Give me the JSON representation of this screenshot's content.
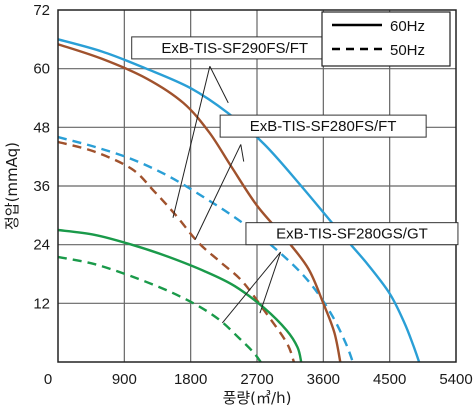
{
  "chart_data": {
    "type": "line",
    "xlabel": "풍량(㎥/h)",
    "ylabel": "정압(mmAq)",
    "xlim": [
      0,
      5400
    ],
    "ylim": [
      0,
      72
    ],
    "x_ticks": [
      900,
      1800,
      2700,
      3600,
      4500,
      5400
    ],
    "y_ticks": [
      0,
      12,
      24,
      36,
      48,
      60,
      72
    ],
    "grid": true,
    "legend": {
      "placement": "top-right",
      "entries": [
        {
          "label": "60Hz",
          "style": "solid"
        },
        {
          "label": "50Hz",
          "style": "dashed"
        }
      ]
    },
    "annotations": [
      {
        "text": "ExB-TIS-SF290FS/FT",
        "color": "#2a9fd6"
      },
      {
        "text": "ExB-TIS-SF280FS/FT",
        "color": "#a0522d"
      },
      {
        "text": "ExB-TIS-SF280GS/GT",
        "color": "#1a9a4a"
      }
    ],
    "series": [
      {
        "model": "ExB-TIS-SF290FS/FT",
        "freq": "60Hz",
        "style": "solid",
        "color": "#2a9fd6",
        "points": [
          [
            0,
            66
          ],
          [
            600,
            63.5
          ],
          [
            1200,
            60
          ],
          [
            1800,
            56
          ],
          [
            2300,
            51
          ],
          [
            2800,
            44.5
          ],
          [
            3300,
            36
          ],
          [
            3800,
            27
          ],
          [
            4200,
            20
          ],
          [
            4500,
            14
          ],
          [
            4700,
            8
          ],
          [
            4830,
            3
          ],
          [
            4900,
            0
          ]
        ]
      },
      {
        "model": "ExB-TIS-SF290FS/FT",
        "freq": "50Hz",
        "style": "dashed",
        "color": "#2a9fd6",
        "points": [
          [
            0,
            46
          ],
          [
            500,
            44
          ],
          [
            1000,
            41.5
          ],
          [
            1500,
            38
          ],
          [
            2000,
            33.5
          ],
          [
            2500,
            28.5
          ],
          [
            3000,
            22.5
          ],
          [
            3400,
            16.5
          ],
          [
            3700,
            10
          ],
          [
            3900,
            4
          ],
          [
            4000,
            0
          ]
        ]
      },
      {
        "model": "ExB-TIS-SF280FS/FT",
        "freq": "60Hz",
        "style": "solid",
        "color": "#a0522d",
        "points": [
          [
            0,
            65
          ],
          [
            600,
            62
          ],
          [
            1200,
            58
          ],
          [
            1700,
            53
          ],
          [
            2050,
            47
          ],
          [
            2350,
            40
          ],
          [
            2700,
            32
          ],
          [
            3100,
            25
          ],
          [
            3400,
            19
          ],
          [
            3600,
            12
          ],
          [
            3750,
            6
          ],
          [
            3830,
            0
          ]
        ]
      },
      {
        "model": "ExB-TIS-SF280FS/FT",
        "freq": "50Hz",
        "style": "dashed",
        "color": "#a0522d",
        "points": [
          [
            0,
            45
          ],
          [
            500,
            43
          ],
          [
            1000,
            39.5
          ],
          [
            1300,
            35
          ],
          [
            1600,
            30
          ],
          [
            1900,
            24.5
          ],
          [
            2200,
            20.5
          ],
          [
            2500,
            16.5
          ],
          [
            2800,
            10.5
          ],
          [
            3100,
            4
          ],
          [
            3200,
            0
          ]
        ]
      },
      {
        "model": "ExB-TIS-SF280GS/GT",
        "freq": "60Hz",
        "style": "solid",
        "color": "#1a9a4a",
        "points": [
          [
            0,
            27
          ],
          [
            500,
            26
          ],
          [
            1000,
            24
          ],
          [
            1500,
            21.5
          ],
          [
            2000,
            18.5
          ],
          [
            2400,
            15.5
          ],
          [
            2800,
            11
          ],
          [
            3100,
            6.5
          ],
          [
            3250,
            3
          ],
          [
            3300,
            0
          ]
        ]
      },
      {
        "model": "ExB-TIS-SF280GS/GT",
        "freq": "50Hz",
        "style": "dashed",
        "color": "#1a9a4a",
        "points": [
          [
            0,
            21.5
          ],
          [
            500,
            20
          ],
          [
            1000,
            17.5
          ],
          [
            1500,
            14.5
          ],
          [
            1900,
            11.5
          ],
          [
            2200,
            8.5
          ],
          [
            2450,
            5
          ],
          [
            2650,
            2
          ],
          [
            2750,
            0
          ]
        ]
      }
    ]
  }
}
